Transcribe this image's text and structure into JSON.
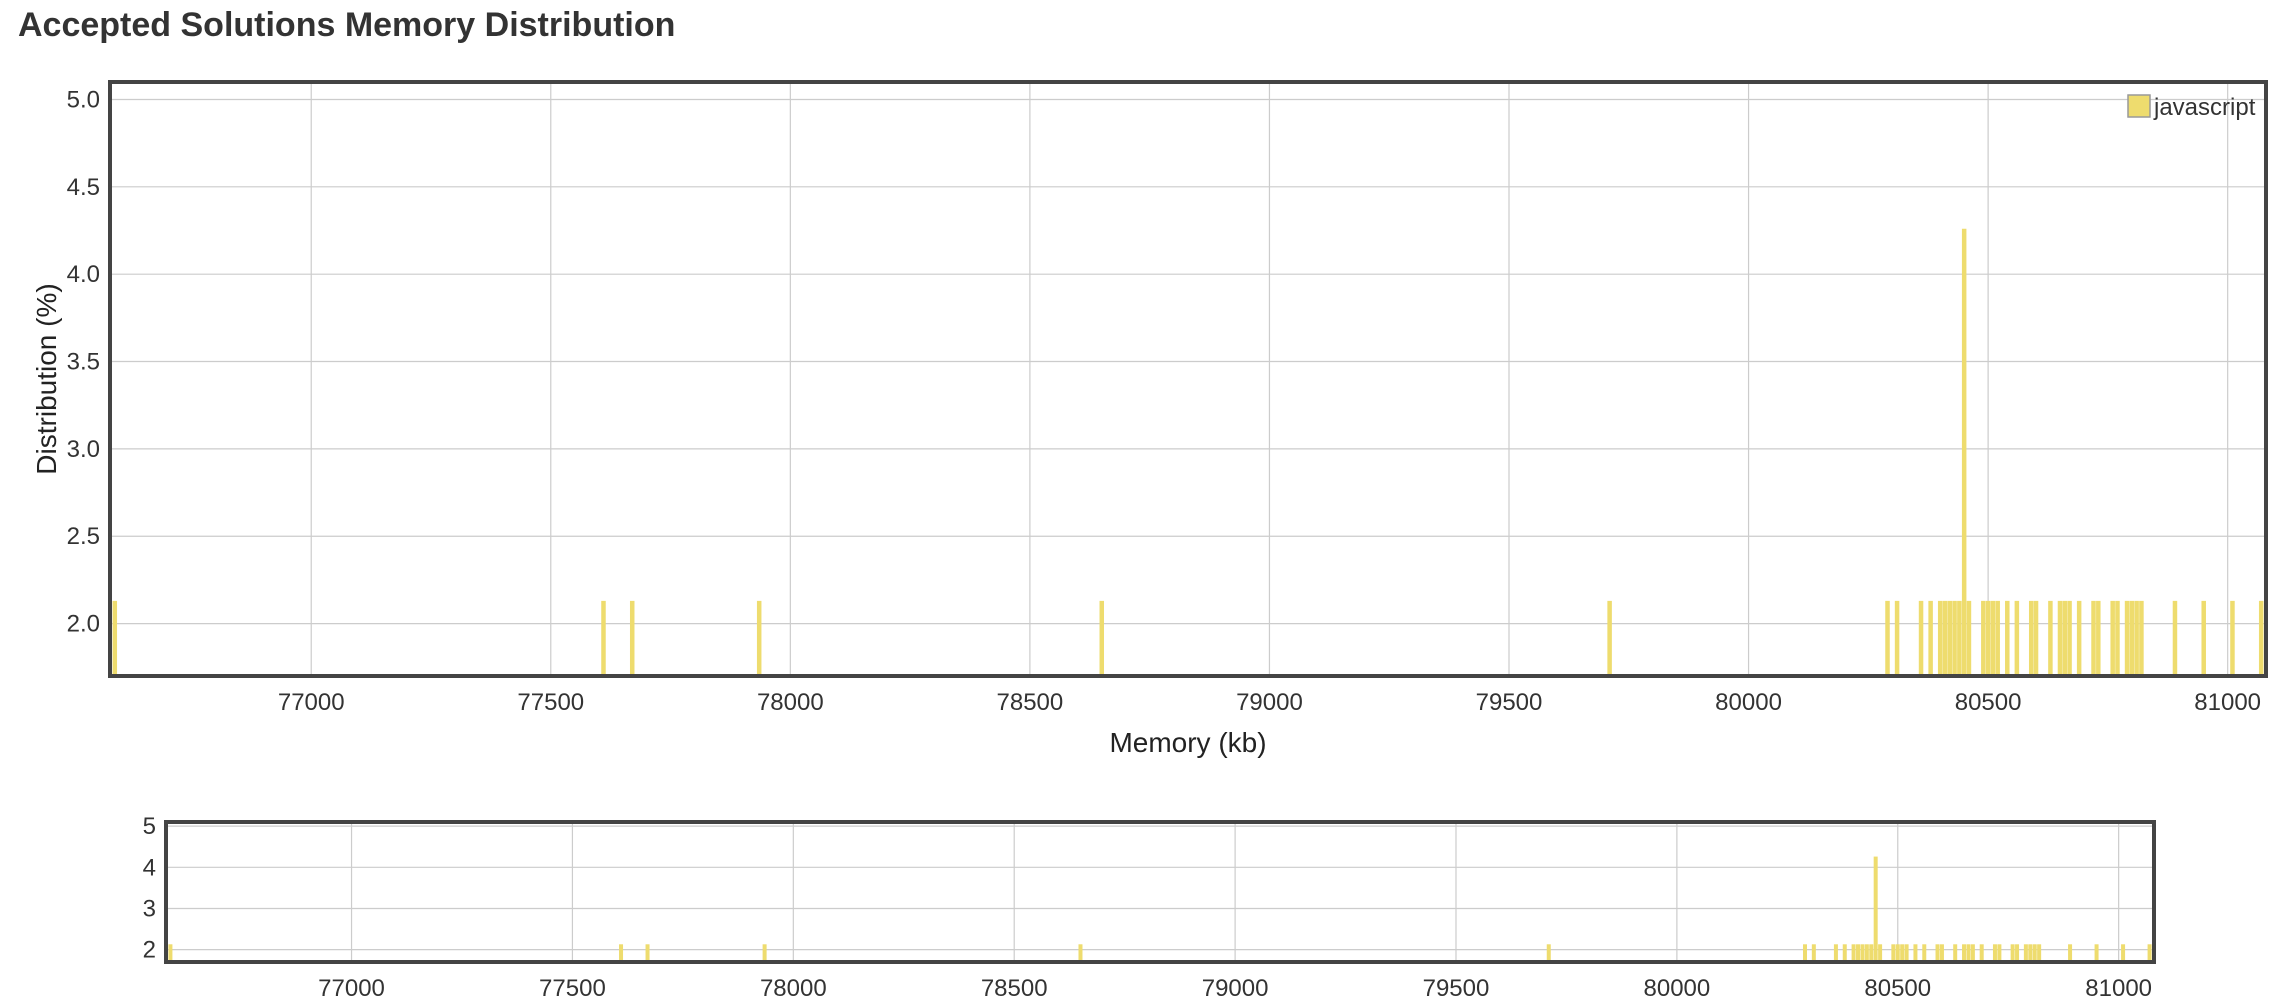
{
  "chart_data": [
    {
      "type": "bar",
      "role": "main",
      "title": "Accepted Solutions Memory Distribution",
      "xlabel": "Memory (kb)",
      "ylabel": "Distribution (%)",
      "xlim": [
        76580,
        81080
      ],
      "ylim": [
        1.7,
        5.1
      ],
      "xticks": [
        "77000",
        "77500",
        "78000",
        "78500",
        "79000",
        "79500",
        "80000",
        "80500",
        "81000"
      ],
      "yticks": [
        "2.0",
        "2.5",
        "3.0",
        "3.5",
        "4.0",
        "4.5",
        "5.0"
      ],
      "grid": true,
      "legend": {
        "position": "top-right",
        "entries": [
          "javascript"
        ]
      },
      "series": [
        {
          "name": "javascript",
          "color": "#eedc6e",
          "x": [
            76590,
            77610,
            77670,
            77935,
            78650,
            79710,
            80290,
            80310,
            80360,
            80380,
            80400,
            80410,
            80420,
            80430,
            80440,
            80450,
            80460,
            80490,
            80500,
            80510,
            80520,
            80540,
            80560,
            80590,
            80600,
            80630,
            80650,
            80660,
            80670,
            80690,
            80720,
            80730,
            80760,
            80770,
            80790,
            80800,
            80810,
            80820,
            80890,
            80950,
            81010,
            81070
          ],
          "values": [
            2.13,
            2.13,
            2.13,
            2.13,
            2.13,
            2.13,
            2.13,
            2.13,
            2.13,
            2.13,
            2.13,
            2.13,
            2.13,
            2.13,
            2.13,
            4.26,
            2.13,
            2.13,
            2.13,
            2.13,
            2.13,
            2.13,
            2.13,
            2.13,
            2.13,
            2.13,
            2.13,
            2.13,
            2.13,
            2.13,
            2.13,
            2.13,
            2.13,
            2.13,
            2.13,
            2.13,
            2.13,
            2.13,
            2.13,
            2.13,
            2.13,
            2.13
          ]
        }
      ]
    },
    {
      "type": "bar",
      "role": "navigator",
      "xlim": [
        76580,
        81080
      ],
      "ylim": [
        1.7,
        5.1
      ],
      "xticks": [
        "77000",
        "77500",
        "78000",
        "78500",
        "79000",
        "79500",
        "80000",
        "80500",
        "81000"
      ],
      "yticks": [
        "2",
        "3",
        "4",
        "5"
      ],
      "grid": true,
      "series_ref": "javascript"
    }
  ]
}
